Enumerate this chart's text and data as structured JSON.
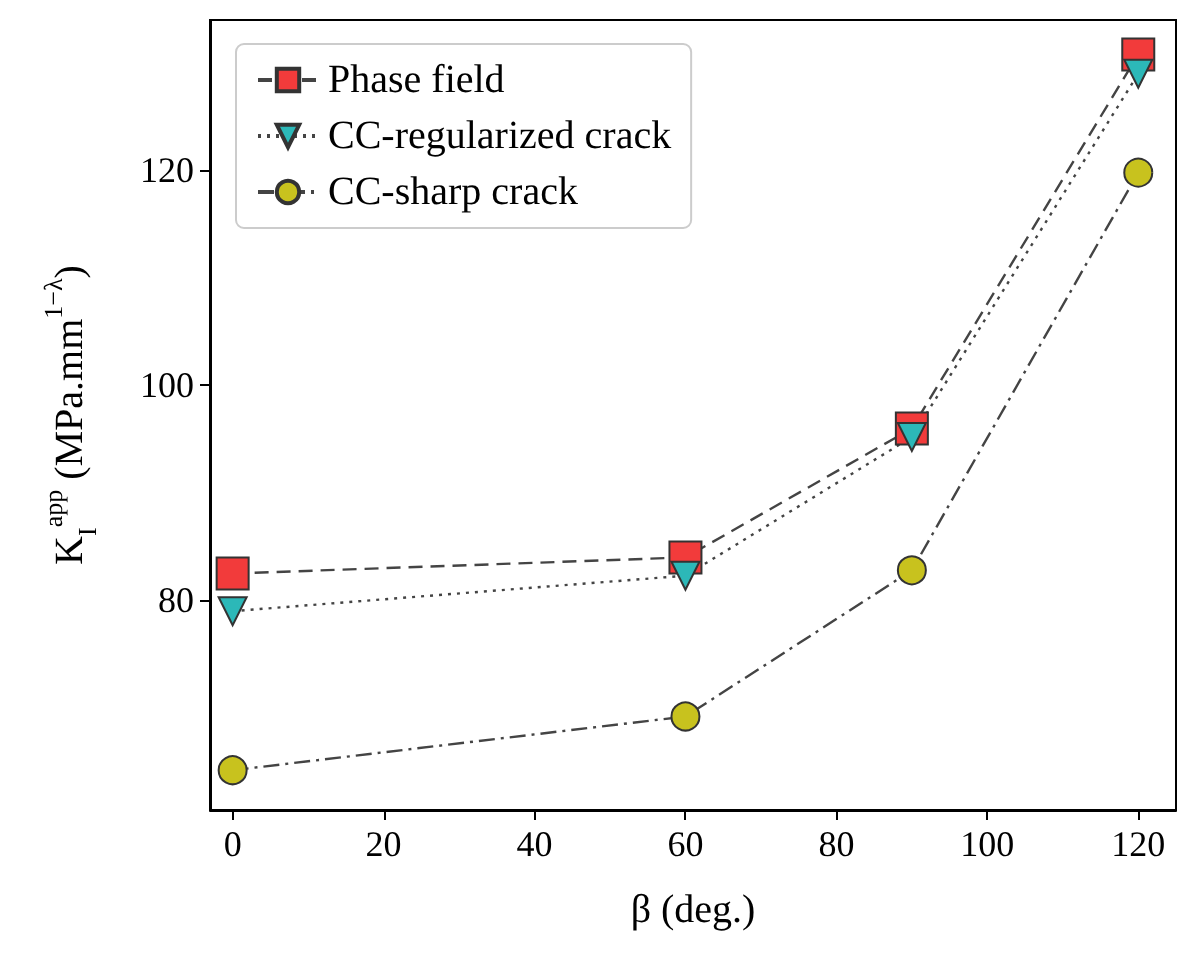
{
  "chart_data": {
    "type": "line",
    "xlabel": "β (deg.)",
    "ylabel": "K$_{I}$$^{app}$ (MPa.mm$^{1−λ}$)",
    "x": [
      0,
      60,
      90,
      120
    ],
    "series": [
      {
        "name": "Phase field",
        "color": "#f23b3b",
        "marker": "square",
        "line_style": "dashed",
        "values": [
          82.5,
          84,
          96,
          130.8
        ]
      },
      {
        "name": "CC-regularized crack",
        "color": "#2cb8b8",
        "marker": "triangle",
        "line_style": "dotted",
        "values": [
          79,
          82.3,
          95.2,
          129
        ]
      },
      {
        "name": "CC-sharp crack",
        "color": "#c8c21e",
        "marker": "circle",
        "line_style": "dashdot",
        "values": [
          64.2,
          69.2,
          82.8,
          119.8
        ]
      }
    ],
    "xlim": [
      -3,
      125
    ],
    "xticks": [
      0,
      20,
      40,
      60,
      80,
      100,
      120
    ],
    "ylim": [
      60.5,
      134
    ],
    "yticks": [
      80,
      100,
      120
    ],
    "grid": false,
    "legend": "top left"
  }
}
